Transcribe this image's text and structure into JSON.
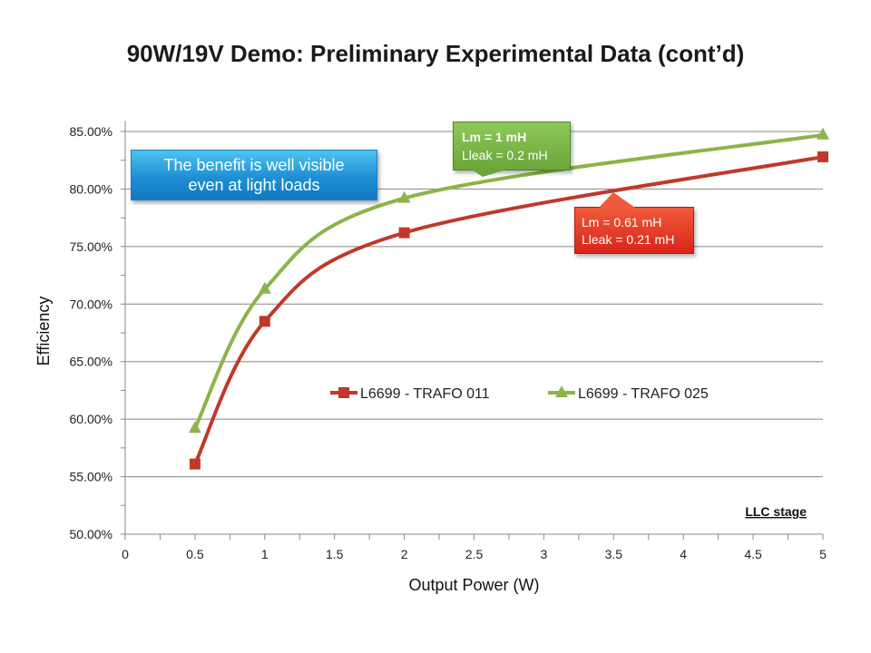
{
  "slide": {
    "title": "90W/19V Demo: Preliminary Experimental Data (cont’d)"
  },
  "callouts": {
    "benefit": {
      "line1": "The benefit is well visible",
      "line2": "even at light loads"
    },
    "green": {
      "line1": "Lm = 1 mH",
      "line2": "Lleak = 0.2 mH"
    },
    "red": {
      "line1": "Lm = 0.61 mH",
      "line2": "Lleak = 0.21 mH"
    }
  },
  "chart_data": {
    "type": "line",
    "title": "",
    "xlabel": "Output Power (W)",
    "ylabel": "Efficiency",
    "xlim": [
      0,
      5
    ],
    "ylim": [
      0.5,
      0.85
    ],
    "x_ticks": [
      0,
      0.5,
      1,
      1.5,
      2,
      2.5,
      3,
      3.5,
      4,
      4.5,
      5
    ],
    "x_tick_labels": [
      "0",
      "0.5",
      "1",
      "1.5",
      "2",
      "2.5",
      "3",
      "3.5",
      "4",
      "4.5",
      "5"
    ],
    "y_ticks": [
      0.5,
      0.55,
      0.6,
      0.65,
      0.7,
      0.75,
      0.8,
      0.85
    ],
    "y_tick_labels": [
      "50.00%",
      "55.00%",
      "60.00%",
      "65.00%",
      "70.00%",
      "75.00%",
      "80.00%",
      "85.00%"
    ],
    "grid": "horizontal",
    "legend_position": "center",
    "annotation": "LLC stage",
    "series": [
      {
        "name": "L6699 - TRAFO 011",
        "color": "#c0392b",
        "marker": "square",
        "x": [
          0.5,
          1,
          2,
          5
        ],
        "y": [
          0.561,
          0.685,
          0.762,
          0.828
        ]
      },
      {
        "name": "L6699 - TRAFO 025",
        "color": "#8db34a",
        "marker": "triangle",
        "x": [
          0.5,
          1,
          2,
          5
        ],
        "y": [
          0.592,
          0.713,
          0.792,
          0.847
        ]
      }
    ]
  }
}
